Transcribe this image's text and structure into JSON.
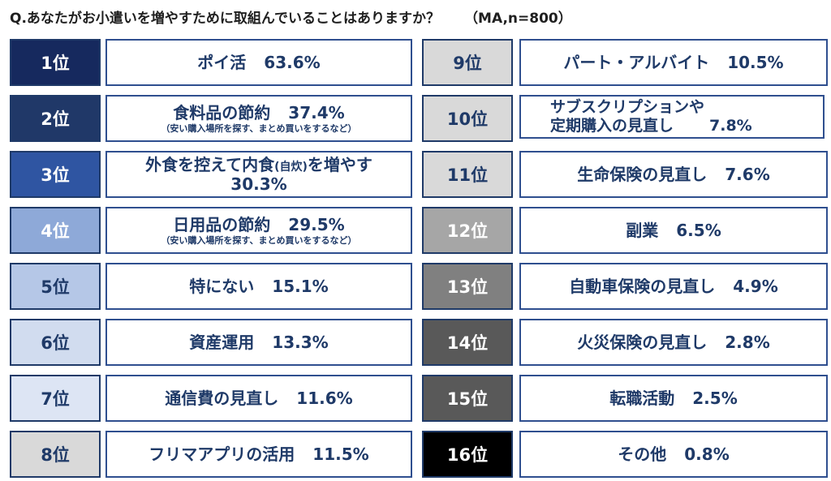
{
  "title": "Q.あなたがお小遣いを増やすために取組んでいることはありますか？",
  "subtitle": "（MA,n=800）",
  "chart_data": {
    "type": "table",
    "title": "Q.あなたがお小遣いを増やすために取組んでいることはありますか？",
    "subtitle": "（MA,n=800）",
    "unit": "%",
    "rows": [
      {
        "rank": "1位",
        "label": "ポイ活",
        "value": 63.6,
        "value_label": "63.6%",
        "rank_bg": "#16295e",
        "rank_color": "#ffffff"
      },
      {
        "rank": "2位",
        "label": "食料品の節約",
        "note": "（安い購入場所を探す、まとめ買いをするなど）",
        "value": 37.4,
        "value_label": "37.4%",
        "rank_bg": "#203868",
        "rank_color": "#ffffff"
      },
      {
        "rank": "3位",
        "label_pre": "外食を控えて内食",
        "label_small": "(自炊)",
        "label_post": "を増やす",
        "label": "外食を控えて内食(自炊)を増やす",
        "value": 30.3,
        "value_label": "30.3%",
        "rank_bg": "#2f55a2",
        "rank_color": "#ffffff"
      },
      {
        "rank": "4位",
        "label": "日用品の節約",
        "note": "（安い購入場所を探す、まとめ買いをするなど）",
        "value": 29.5,
        "value_label": "29.5%",
        "rank_bg": "#8ea9d8",
        "rank_color": "#ffffff"
      },
      {
        "rank": "5位",
        "label": "特にない",
        "value": 15.1,
        "value_label": "15.1%",
        "rank_bg": "#b5c7e7",
        "rank_color": "#1f3a68"
      },
      {
        "rank": "6位",
        "label": "資産運用",
        "value": 13.3,
        "value_label": "13.3%",
        "rank_bg": "#d1dcef",
        "rank_color": "#1f3a68"
      },
      {
        "rank": "7位",
        "label": "通信費の見直し",
        "value": 11.6,
        "value_label": "11.6%",
        "rank_bg": "#dde5f4",
        "rank_color": "#1f3a68"
      },
      {
        "rank": "8位",
        "label": "フリマアプリの活用",
        "value": 11.5,
        "value_label": "11.5%",
        "rank_bg": "#d9d9d9",
        "rank_color": "#1f3a68"
      },
      {
        "rank": "9位",
        "label": "パート・アルバイト",
        "value": 10.5,
        "value_label": "10.5%",
        "rank_bg": "#d9d9d9",
        "rank_color": "#1f3a68"
      },
      {
        "rank": "10位",
        "label_line1": "サブスクリプションや",
        "label_line2": "定期購入の見直し",
        "label": "サブスクリプションや定期購入の見直し",
        "value": 7.8,
        "value_label": "7.8%",
        "rank_bg": "#d9d9d9",
        "rank_color": "#1f3a68"
      },
      {
        "rank": "11位",
        "label": "生命保険の見直し",
        "value": 7.6,
        "value_label": "7.6%",
        "rank_bg": "#d9d9d9",
        "rank_color": "#1f3a68"
      },
      {
        "rank": "12位",
        "label": "副業",
        "value": 6.5,
        "value_label": "6.5%",
        "rank_bg": "#a6a6a6",
        "rank_color": "#ffffff"
      },
      {
        "rank": "13位",
        "label": "自動車保険の見直し",
        "value": 4.9,
        "value_label": "4.9%",
        "rank_bg": "#808080",
        "rank_color": "#ffffff"
      },
      {
        "rank": "14位",
        "label": "火災保険の見直し",
        "value": 2.8,
        "value_label": "2.8%",
        "rank_bg": "#595959",
        "rank_color": "#ffffff"
      },
      {
        "rank": "15位",
        "label": "転職活動",
        "value": 2.5,
        "value_label": "2.5%",
        "rank_bg": "#595959",
        "rank_color": "#ffffff"
      },
      {
        "rank": "16位",
        "label": "その他",
        "value": 0.8,
        "value_label": "0.8%",
        "rank_bg": "#000000",
        "rank_color": "#ffffff"
      }
    ]
  }
}
